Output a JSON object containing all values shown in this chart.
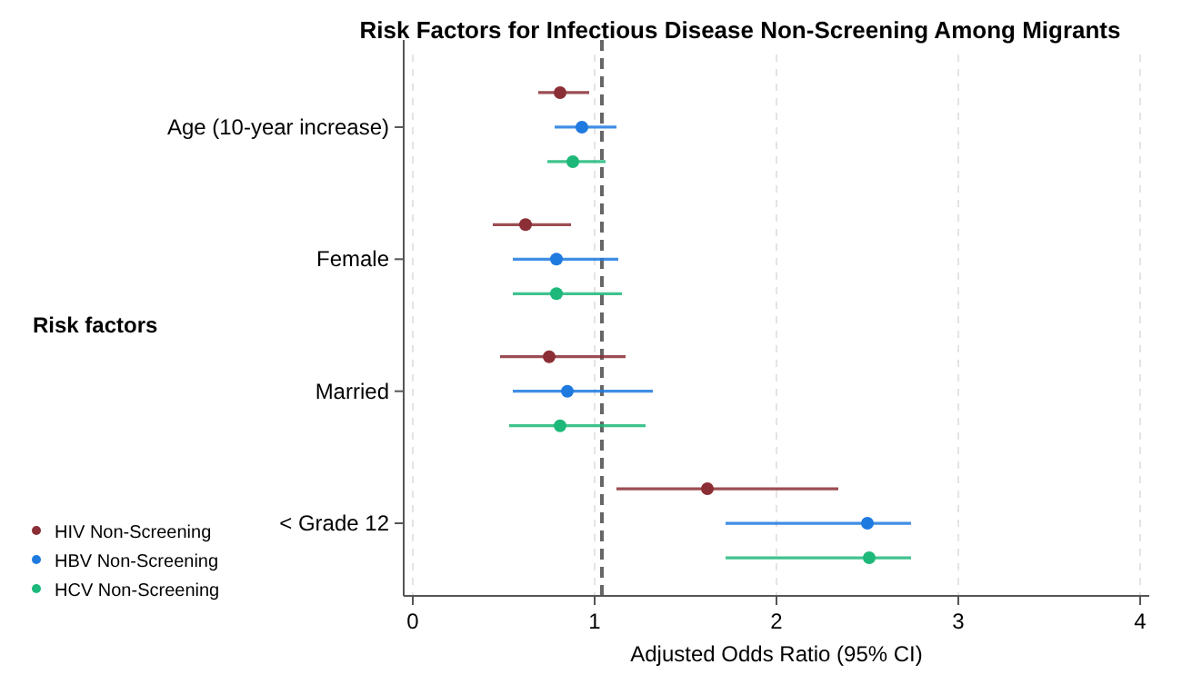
{
  "chart_data": {
    "type": "scatter",
    "orientation": "horizontal",
    "title": "Risk Factors for Infectious Disease Non-Screening Among Migrants",
    "xlabel": "Adjusted Odds Ratio (95% CI)",
    "ylabel": "Risk factors",
    "categories": [
      "Age (10-year increase)",
      "Female",
      "Married",
      "< Grade 12"
    ],
    "series": [
      {
        "name": "HIV Non-Screening",
        "color": "#8b2e35",
        "values": [
          0.81,
          0.62,
          0.75,
          1.62
        ],
        "errors": [
          [
            0.69,
            0.97
          ],
          [
            0.44,
            0.87
          ],
          [
            0.48,
            1.17
          ],
          [
            1.12,
            2.34
          ]
        ]
      },
      {
        "name": "HBV Non-Screening",
        "color": "#1f7ae0",
        "values": [
          0.93,
          0.79,
          0.85,
          2.5
        ],
        "errors": [
          [
            0.78,
            1.12
          ],
          [
            0.55,
            1.13
          ],
          [
            0.55,
            1.32
          ],
          [
            1.72,
            2.74
          ]
        ]
      },
      {
        "name": "HCV Non-Screening",
        "color": "#1db87a",
        "values": [
          0.88,
          0.79,
          0.81,
          2.51
        ],
        "errors": [
          [
            0.74,
            1.06
          ],
          [
            0.55,
            1.15
          ],
          [
            0.53,
            1.28
          ],
          [
            1.72,
            2.74
          ]
        ]
      }
    ],
    "xlim": [
      -0.05,
      4.05
    ],
    "xticks": [
      0,
      1,
      2,
      3,
      4
    ],
    "grid": "x",
    "legend": "bottom left",
    "marker": "circle",
    "ref_lines": [
      {
        "axis": "x",
        "value": 1.04,
        "line_style": "dashed",
        "color": "#666666"
      }
    ]
  }
}
